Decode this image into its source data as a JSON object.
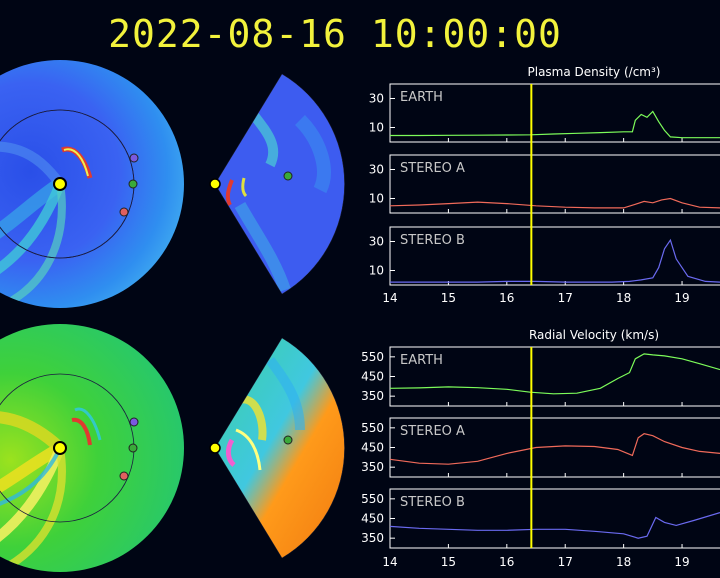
{
  "timestamp": "2022-08-16 10:00:00",
  "colors": {
    "background": "#000514",
    "timestamp": "#f2f23c",
    "axis": "#ffffff",
    "cursor": "#ffff00",
    "earth": "#7cfc5a",
    "stereo_a": "#f06a5a",
    "stereo_b": "#6a6af0",
    "planet_sun": "#ffff00",
    "marker_earth": "#3aaa3a",
    "marker_stereo_a": "#e06060",
    "marker_stereo_b": "#7a5ae0"
  },
  "images": {
    "density_polar": "blue-scale heliospheric density map (polar view) with spiral CME structure",
    "density_wedge": "blue-scale density map (meridional wedge view)",
    "velocity_polar": "green-yellow velocity map (polar view) with spiral streams",
    "velocity_wedge": "green-orange velocity map (meridional wedge view)"
  },
  "chart_data": [
    {
      "type": "line",
      "title": "Plasma Density (/cm³)",
      "x_ticks": [
        14,
        15,
        16,
        17,
        18,
        19
      ],
      "xlim": [
        14,
        19.65
      ],
      "cursor_x": 16.42,
      "panels": [
        {
          "label": "EARTH",
          "color_key": "earth",
          "y_ticks": [
            10,
            30
          ],
          "ylim": [
            0,
            40
          ],
          "x": [
            14,
            14.5,
            15,
            15.5,
            16,
            16.4,
            16.8,
            17.2,
            17.6,
            18.0,
            18.15,
            18.2,
            18.3,
            18.4,
            18.5,
            18.6,
            18.7,
            18.8,
            19.0,
            19.3,
            19.65
          ],
          "y": [
            4.5,
            4.5,
            4.6,
            4.7,
            4.8,
            5,
            5.5,
            6,
            6.5,
            7,
            7,
            15,
            19,
            17,
            21,
            14,
            8,
            3.5,
            3,
            3,
            3
          ]
        },
        {
          "label": "STEREO A",
          "color_key": "stereo_a",
          "y_ticks": [
            10,
            30
          ],
          "ylim": [
            0,
            40
          ],
          "x": [
            14,
            14.5,
            15,
            15.5,
            16,
            16.5,
            17,
            17.5,
            18.0,
            18.2,
            18.35,
            18.5,
            18.65,
            18.8,
            19.0,
            19.3,
            19.65
          ],
          "y": [
            5,
            5.5,
            6.5,
            7.5,
            6.5,
            5,
            4,
            3.5,
            3.5,
            6,
            8,
            7,
            9,
            10,
            7,
            4,
            3.5
          ]
        },
        {
          "label": "STEREO B",
          "color_key": "stereo_b",
          "y_ticks": [
            10,
            30
          ],
          "ylim": [
            0,
            40
          ],
          "x": [
            14,
            14.5,
            15,
            15.5,
            16,
            16.5,
            17,
            17.5,
            17.8,
            18.1,
            18.3,
            18.5,
            18.6,
            18.7,
            18.8,
            18.9,
            19.1,
            19.4,
            19.65
          ],
          "y": [
            2,
            2,
            2,
            2,
            2.5,
            2.5,
            2,
            2,
            2,
            2.5,
            3.5,
            5,
            12,
            25,
            31,
            18,
            6,
            2.5,
            2
          ]
        }
      ]
    },
    {
      "type": "line",
      "title": "Radial Velocity (km/s)",
      "x_ticks": [
        14,
        15,
        16,
        17,
        18,
        19
      ],
      "xlim": [
        14,
        19.65
      ],
      "cursor_x": 16.42,
      "panels": [
        {
          "label": "EARTH",
          "color_key": "earth",
          "y_ticks": [
            350,
            450,
            550
          ],
          "ylim": [
            300,
            600
          ],
          "x": [
            14,
            14.5,
            15,
            15.5,
            16,
            16.4,
            16.8,
            17.2,
            17.6,
            17.9,
            18.1,
            18.2,
            18.35,
            18.5,
            18.7,
            19.0,
            19.3,
            19.65
          ],
          "y": [
            390,
            392,
            397,
            393,
            385,
            370,
            362,
            365,
            390,
            440,
            470,
            540,
            565,
            560,
            555,
            540,
            515,
            485
          ]
        },
        {
          "label": "STEREO A",
          "color_key": "stereo_a",
          "y_ticks": [
            350,
            450,
            550
          ],
          "ylim": [
            300,
            600
          ],
          "x": [
            14,
            14.5,
            15,
            15.5,
            16,
            16.5,
            17,
            17.5,
            17.9,
            18.15,
            18.25,
            18.35,
            18.5,
            18.7,
            19.0,
            19.3,
            19.65
          ],
          "y": [
            390,
            370,
            365,
            380,
            420,
            450,
            458,
            455,
            440,
            410,
            500,
            520,
            510,
            480,
            450,
            430,
            420
          ]
        },
        {
          "label": "STEREO B",
          "color_key": "stereo_b",
          "y_ticks": [
            350,
            450,
            550
          ],
          "ylim": [
            300,
            600
          ],
          "x": [
            14,
            14.5,
            15,
            15.5,
            16,
            16.5,
            17,
            17.5,
            18.0,
            18.25,
            18.4,
            18.55,
            18.7,
            18.9,
            19.2,
            19.65
          ],
          "y": [
            410,
            400,
            395,
            390,
            390,
            395,
            395,
            385,
            372,
            350,
            360,
            455,
            430,
            415,
            440,
            480
          ]
        }
      ]
    }
  ]
}
